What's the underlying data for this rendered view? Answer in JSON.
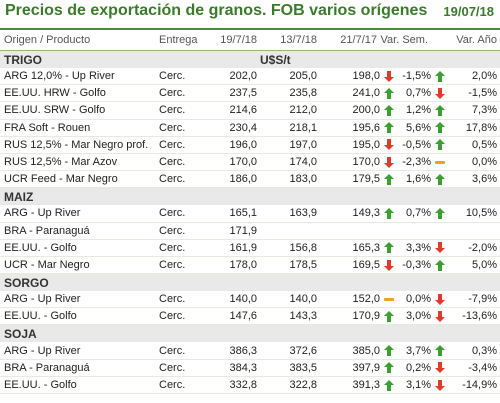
{
  "header": {
    "title": "Precios de exportación de granos. FOB varios orígenes",
    "date": "19/07/18"
  },
  "columns": {
    "product": "Origen / Producto",
    "delivery": "Entrega",
    "d1": "19/7/18",
    "d2": "13/7/18",
    "d3": "21/7/17",
    "week": "Var. Sem.",
    "year": "Var. Año"
  },
  "unit": "U$S/t",
  "sections": [
    {
      "name": "TRIGO",
      "rows": [
        {
          "product": "ARG 12,0% - Up River",
          "delivery": "Cerc.",
          "d1": "202,0",
          "d2": "205,0",
          "d3": "198,0",
          "i1": "down",
          "week": "-1,5%",
          "i2": "up",
          "year": "2,0%"
        },
        {
          "product": "EE.UU. HRW - Golfo",
          "delivery": "Cerc.",
          "d1": "237,5",
          "d2": "235,8",
          "d3": "241,0",
          "i1": "up",
          "week": "0,7%",
          "i2": "down",
          "year": "-1,5%"
        },
        {
          "product": "EE.UU. SRW - Golfo",
          "delivery": "Cerc.",
          "d1": "214,6",
          "d2": "212,0",
          "d3": "200,0",
          "i1": "up",
          "week": "1,2%",
          "i2": "up",
          "year": "7,3%"
        },
        {
          "product": "FRA Soft - Rouen",
          "delivery": "Cerc.",
          "d1": "230,4",
          "d2": "218,1",
          "d3": "195,6",
          "i1": "up",
          "week": "5,6%",
          "i2": "up",
          "year": "17,8%"
        },
        {
          "product": "RUS 12,5% - Mar Negro prof.",
          "delivery": "Cerc.",
          "d1": "196,0",
          "d2": "197,0",
          "d3": "195,0",
          "i1": "down",
          "week": "-0,5%",
          "i2": "up",
          "year": "0,5%"
        },
        {
          "product": "RUS 12,5% - Mar Azov",
          "delivery": "Cerc.",
          "d1": "170,0",
          "d2": "174,0",
          "d3": "170,0",
          "i1": "down",
          "week": "-2,3%",
          "i2": "flat",
          "year": "0,0%"
        },
        {
          "product": "UCR Feed - Mar Negro",
          "delivery": "Cerc.",
          "d1": "186,0",
          "d2": "183,0",
          "d3": "179,5",
          "i1": "up",
          "week": "1,6%",
          "i2": "up",
          "year": "3,6%"
        }
      ]
    },
    {
      "name": "MAIZ",
      "rows": [
        {
          "product": "ARG - Up River",
          "delivery": "Cerc.",
          "d1": "165,1",
          "d2": "163,9",
          "d3": "149,3",
          "i1": "up",
          "week": "0,7%",
          "i2": "up",
          "year": "10,5%"
        },
        {
          "product": "BRA - Paranaguá",
          "delivery": "Cerc.",
          "d1": "171,9",
          "d2": "",
          "d3": "",
          "i1": "",
          "week": "",
          "i2": "",
          "year": ""
        },
        {
          "product": "EE.UU. - Golfo",
          "delivery": "Cerc.",
          "d1": "161,9",
          "d2": "156,8",
          "d3": "165,3",
          "i1": "up",
          "week": "3,3%",
          "i2": "down",
          "year": "-2,0%"
        },
        {
          "product": "UCR - Mar Negro",
          "delivery": "Cerc.",
          "d1": "178,0",
          "d2": "178,5",
          "d3": "169,5",
          "i1": "down",
          "week": "-0,3%",
          "i2": "up",
          "year": "5,0%"
        }
      ]
    },
    {
      "name": "SORGO",
      "rows": [
        {
          "product": "ARG - Up River",
          "delivery": "Cerc.",
          "d1": "140,0",
          "d2": "140,0",
          "d3": "152,0",
          "i1": "flat",
          "week": "0,0%",
          "i2": "down",
          "year": "-7,9%"
        },
        {
          "product": "EE.UU. - Golfo",
          "delivery": "Cerc.",
          "d1": "147,6",
          "d2": "143,3",
          "d3": "170,9",
          "i1": "up",
          "week": "3,0%",
          "i2": "down",
          "year": "-13,6%"
        }
      ]
    },
    {
      "name": "SOJA",
      "rows": [
        {
          "product": "ARG - Up River",
          "delivery": "Cerc.",
          "d1": "386,3",
          "d2": "372,6",
          "d3": "385,0",
          "i1": "up",
          "week": "3,7%",
          "i2": "up",
          "year": "0,3%"
        },
        {
          "product": "BRA - Paranaguá",
          "delivery": "Cerc.",
          "d1": "384,3",
          "d2": "383,5",
          "d3": "397,9",
          "i1": "up",
          "week": "0,2%",
          "i2": "down",
          "year": "-3,4%"
        },
        {
          "product": "EE.UU. - Golfo",
          "delivery": "Cerc.",
          "d1": "332,8",
          "d2": "322,8",
          "d3": "391,3",
          "i1": "up",
          "week": "3,1%",
          "i2": "down",
          "year": "-14,9%"
        }
      ]
    }
  ]
}
